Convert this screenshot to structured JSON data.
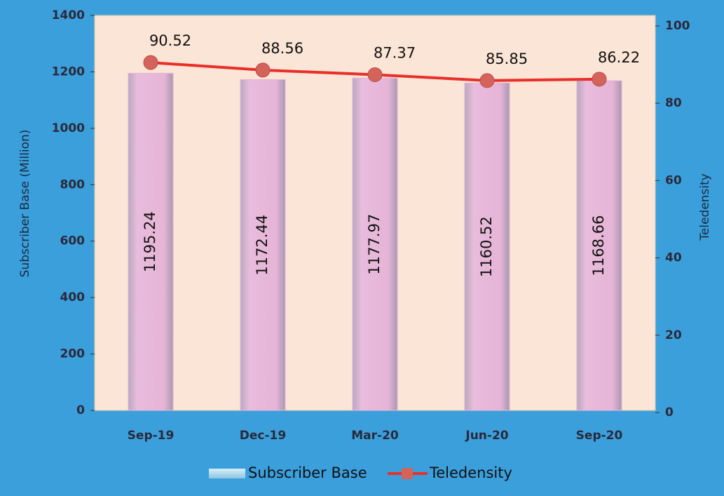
{
  "chart_data": {
    "type": "bar_line",
    "categories": [
      "Sep-19",
      "Dec-19",
      "Mar-20",
      "Jun-20",
      "Sep-20"
    ],
    "series": [
      {
        "name": "Subscriber Base",
        "color": "#e6b4d6",
        "values": [
          1195.24,
          1172.44,
          1177.97,
          1160.52,
          1168.66
        ]
      },
      {
        "name": "Teledensity",
        "color": "#e8302a",
        "axis": "y2",
        "values": [
          90.52,
          88.56,
          87.37,
          85.85,
          86.22
        ]
      }
    ],
    "ylabel": "Subscriber Base (Million)",
    "y2label": "Teledensity",
    "ylim": [
      0,
      1400
    ],
    "yticks": [
      0,
      200,
      400,
      600,
      800,
      1000,
      1200,
      1400
    ],
    "y2lim": [
      0,
      102.7
    ],
    "y2ticks": [
      0,
      20,
      40,
      60,
      80,
      100
    ],
    "legend": "bottom"
  }
}
